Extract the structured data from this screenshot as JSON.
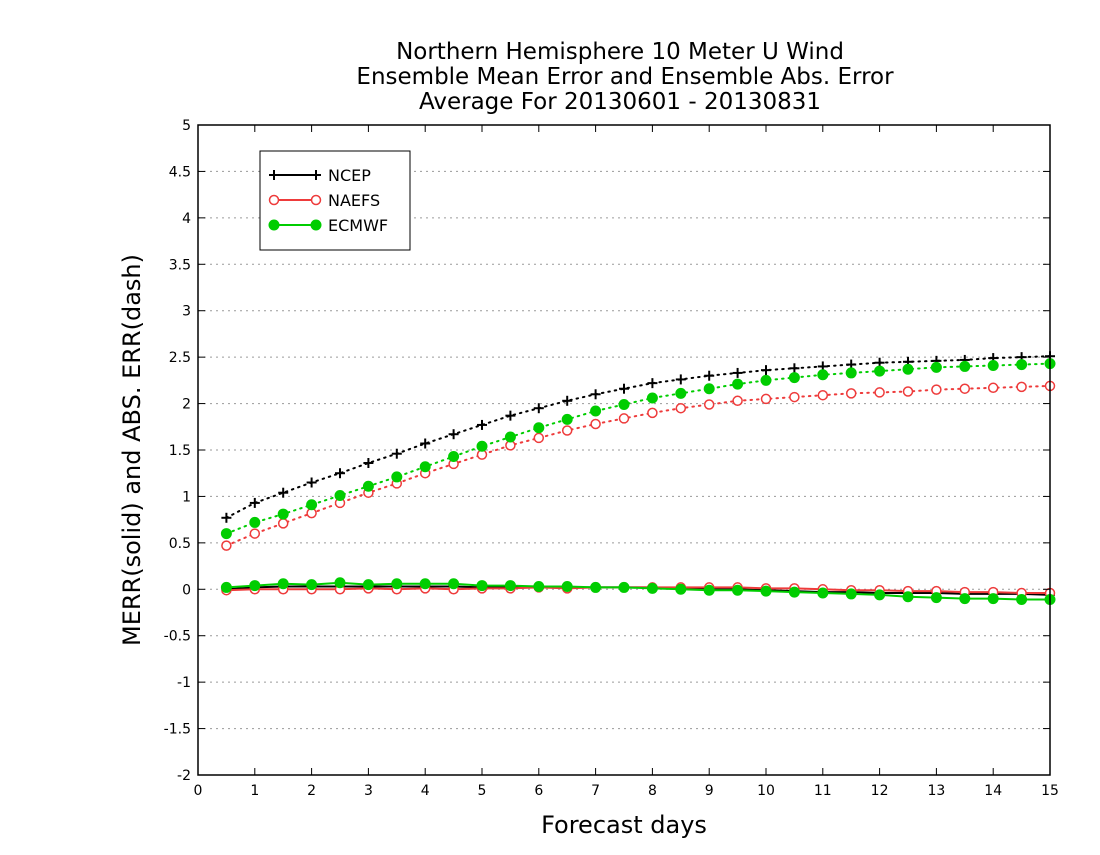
{
  "chart_data": {
    "type": "line",
    "title": [
      "Northern Hemisphere 10 Meter U Wind",
      "Ensemble Mean Error and Ensemble Abs. Error",
      "Average For 20130601 - 20130831"
    ],
    "xlabel": "Forecast days",
    "ylabel": "MERR(solid) and ABS. ERR(dash)",
    "xlim": [
      0,
      15
    ],
    "ylim": [
      -2,
      5
    ],
    "xticks": [
      "0",
      "1",
      "2",
      "3",
      "4",
      "5",
      "6",
      "7",
      "8",
      "9",
      "10",
      "11",
      "12",
      "13",
      "14",
      "15"
    ],
    "yticks": [
      "-2",
      "-1.5",
      "-1",
      "-0.5",
      "0",
      "0.5",
      "1",
      "1.5",
      "2",
      "2.5",
      "3",
      "3.5",
      "4",
      "4.5",
      "5"
    ],
    "grid": "horizontal dotted",
    "legend_position": "top-left",
    "x": [
      0.5,
      1,
      1.5,
      2,
      2.5,
      3,
      3.5,
      4,
      4.5,
      5,
      5.5,
      6,
      6.5,
      7,
      7.5,
      8,
      8.5,
      9,
      9.5,
      10,
      10.5,
      11,
      11.5,
      12,
      12.5,
      13,
      13.5,
      14,
      14.5,
      15
    ],
    "series": [
      {
        "name": "NCEP",
        "color": "#000000",
        "marker": "plus",
        "abs_err": [
          0.77,
          0.93,
          1.04,
          1.15,
          1.25,
          1.36,
          1.46,
          1.57,
          1.67,
          1.77,
          1.87,
          1.95,
          2.03,
          2.1,
          2.16,
          2.22,
          2.26,
          2.3,
          2.33,
          2.36,
          2.38,
          2.4,
          2.42,
          2.44,
          2.45,
          2.46,
          2.47,
          2.49,
          2.5,
          2.51
        ],
        "mean_err": [
          0.0,
          0.02,
          0.03,
          0.03,
          0.03,
          0.03,
          0.03,
          0.03,
          0.03,
          0.02,
          0.02,
          0.02,
          0.02,
          0.02,
          0.02,
          0.02,
          0.01,
          0.0,
          0.0,
          -0.01,
          -0.02,
          -0.03,
          -0.03,
          -0.04,
          -0.04,
          -0.04,
          -0.05,
          -0.05,
          -0.05,
          -0.06
        ]
      },
      {
        "name": "NAEFS",
        "color": "#ee3b3b",
        "marker": "open-circle",
        "abs_err": [
          0.47,
          0.6,
          0.71,
          0.82,
          0.93,
          1.04,
          1.14,
          1.25,
          1.35,
          1.45,
          1.55,
          1.63,
          1.71,
          1.78,
          1.84,
          1.9,
          1.95,
          1.99,
          2.03,
          2.05,
          2.07,
          2.09,
          2.11,
          2.12,
          2.13,
          2.15,
          2.16,
          2.17,
          2.18,
          2.19
        ],
        "mean_err": [
          -0.01,
          0.0,
          0.0,
          0.0,
          0.0,
          0.01,
          0.0,
          0.01,
          0.0,
          0.01,
          0.01,
          0.02,
          0.01,
          0.02,
          0.02,
          0.02,
          0.02,
          0.02,
          0.02,
          0.01,
          0.01,
          0.0,
          -0.01,
          -0.01,
          -0.02,
          -0.02,
          -0.03,
          -0.03,
          -0.04,
          -0.04
        ]
      },
      {
        "name": "ECMWF",
        "color": "#00cd00",
        "marker": "filled-circle",
        "abs_err": [
          0.6,
          0.72,
          0.81,
          0.91,
          1.01,
          1.11,
          1.21,
          1.32,
          1.43,
          1.54,
          1.64,
          1.74,
          1.83,
          1.92,
          1.99,
          2.06,
          2.11,
          2.16,
          2.21,
          2.25,
          2.28,
          2.31,
          2.33,
          2.35,
          2.37,
          2.39,
          2.4,
          2.41,
          2.42,
          2.43
        ],
        "mean_err": [
          0.02,
          0.04,
          0.06,
          0.05,
          0.07,
          0.05,
          0.06,
          0.06,
          0.06,
          0.04,
          0.04,
          0.03,
          0.03,
          0.02,
          0.02,
          0.01,
          0.0,
          -0.01,
          -0.01,
          -0.02,
          -0.03,
          -0.04,
          -0.05,
          -0.06,
          -0.08,
          -0.09,
          -0.1,
          -0.1,
          -0.11,
          -0.11
        ]
      }
    ]
  }
}
